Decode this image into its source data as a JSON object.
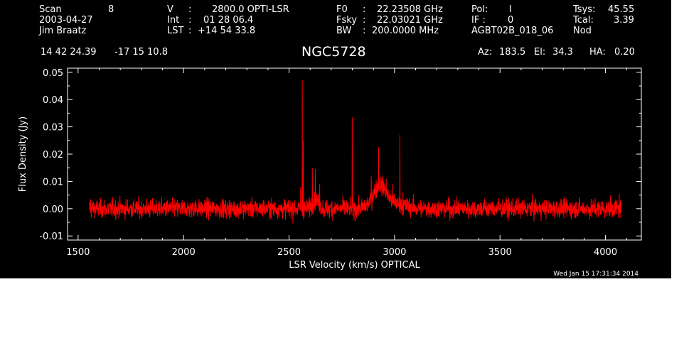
{
  "header": {
    "scan_label": "Scan",
    "scan_value": "8",
    "date": "2003-04-27",
    "observer": "Jim Braatz",
    "v_label": "V",
    "v_sep": ":",
    "v_value": "2800.0 OPTI-LSR",
    "int_label": "Int",
    "int_sep": ":",
    "int_value": "01 28 06.4",
    "lst_label": "LST",
    "lst_sep": ":",
    "lst_value": "+14 54 33.8",
    "f0_label": "F0",
    "f0_sep": ":",
    "f0_value": "22.23508 GHz",
    "fsky_label": "Fsky",
    "fsky_sep": ":",
    "fsky_value": "22.03021 GHz",
    "bw_label": "BW",
    "bw_sep": ":",
    "bw_value": "200.0000 MHz",
    "pol_label": "Pol:",
    "pol_value": "I",
    "if_label": "IF :",
    "if_value": "0",
    "project": "AGBT02B_018_06",
    "tsys_label": "Tsys:",
    "tsys_value": "45.55",
    "tcal_label": "Tcal:",
    "tcal_value": "3.39",
    "mode": "Nod",
    "ra": "14 42 24.39",
    "dec": "-17 15 10.8",
    "source": "NGC5728",
    "az_label": "Az:",
    "az_value": "183.5",
    "el_label": "El:",
    "el_value": "34.3",
    "ha_label": "HA:",
    "ha_value": "0.20"
  },
  "timestamp": "Wed Jan 15 17:31:34 2014",
  "colors": {
    "background": "#000000",
    "axes": "#ffffff",
    "trace": "#ff0000"
  },
  "chart_data": {
    "type": "line",
    "xlabel": "LSR Velocity (km/s) OPTICAL",
    "ylabel": "Flux Density (Jy)",
    "xlim": [
      1450,
      4170
    ],
    "ylim": [
      -0.0115,
      0.0515
    ],
    "xticks": [
      1500,
      2000,
      2500,
      3000,
      3500,
      4000
    ],
    "xtick_labels": [
      "1500",
      "2000",
      "2500",
      "3000",
      "3500",
      "4000"
    ],
    "yticks": [
      -0.01,
      0.0,
      0.01,
      0.02,
      0.03,
      0.04,
      0.05
    ],
    "ytick_labels": [
      "-0.01",
      "0.00",
      "0.01",
      "0.02",
      "0.03",
      "0.04",
      "0.05"
    ],
    "grid": false,
    "series": [
      {
        "color": "#ff0000",
        "x_range": [
          1553,
          4075
        ],
        "baseline": 0.0,
        "noise_rms": 0.002,
        "features": [
          {
            "x": 1560,
            "y": 0.0035
          },
          {
            "x": 2555,
            "y": 0.008
          },
          {
            "x": 2563,
            "y": 0.047
          },
          {
            "x": 2568,
            "y": 0.025
          },
          {
            "x": 2610,
            "y": 0.015
          },
          {
            "x": 2625,
            "y": 0.0145
          },
          {
            "x": 2645,
            "y": 0.009
          },
          {
            "x": 2799,
            "y": 0.0335
          },
          {
            "x": 2830,
            "y": 0.005
          },
          {
            "x": 2890,
            "y": 0.012
          },
          {
            "x": 2925,
            "y": 0.0225
          },
          {
            "x": 2960,
            "y": 0.011
          },
          {
            "x": 2990,
            "y": 0.009
          },
          {
            "x": 3025,
            "y": 0.027
          },
          {
            "x": 3040,
            "y": 0.006
          },
          {
            "x": 3080,
            "y": 0.002
          },
          {
            "x": 4065,
            "y": 0.0055
          }
        ]
      }
    ]
  }
}
